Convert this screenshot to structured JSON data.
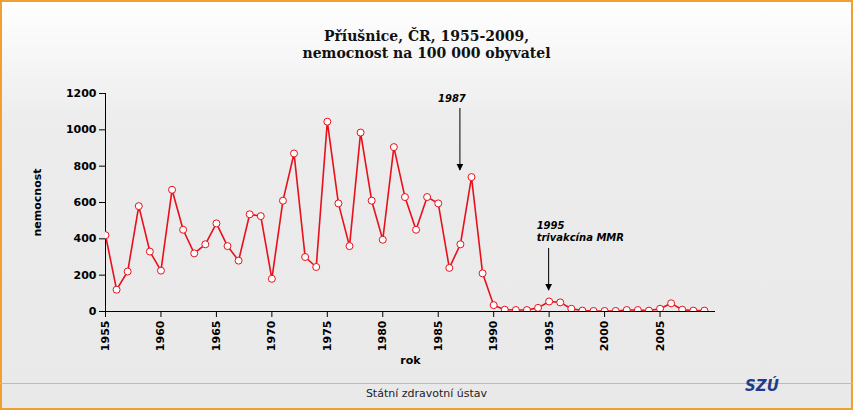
{
  "chart_data": {
    "type": "line",
    "title": "Příušnice, ČR, 1955-2009,",
    "subtitle": "nemocnost na 100 000 obyvatel",
    "x_label": "rok",
    "y_label": "nemocnost",
    "x": [
      1955,
      1956,
      1957,
      1958,
      1959,
      1960,
      1961,
      1962,
      1963,
      1964,
      1965,
      1966,
      1967,
      1968,
      1969,
      1970,
      1971,
      1972,
      1973,
      1974,
      1975,
      1976,
      1977,
      1978,
      1979,
      1980,
      1981,
      1982,
      1983,
      1984,
      1985,
      1986,
      1987,
      1988,
      1989,
      1990,
      1991,
      1992,
      1993,
      1994,
      1995,
      1996,
      1997,
      1998,
      1999,
      2000,
      2001,
      2002,
      2003,
      2004,
      2005,
      2006,
      2007,
      2008,
      2009
    ],
    "values": [
      420,
      120,
      220,
      580,
      330,
      225,
      670,
      450,
      320,
      370,
      485,
      360,
      280,
      535,
      525,
      180,
      610,
      870,
      300,
      245,
      1045,
      595,
      360,
      985,
      610,
      395,
      905,
      630,
      450,
      630,
      595,
      240,
      370,
      740,
      210,
      35,
      10,
      8,
      8,
      20,
      55,
      50,
      15,
      5,
      3,
      3,
      3,
      8,
      8,
      5,
      15,
      45,
      10,
      5,
      5
    ],
    "color": "#e8101a",
    "marker": "circle",
    "xlim": [
      1955,
      2010
    ],
    "xticks": [
      1955,
      1960,
      1965,
      1970,
      1975,
      1980,
      1985,
      1990,
      1995,
      2000,
      2005
    ],
    "ylim": [
      0,
      1200
    ],
    "yticks": [
      0,
      200,
      400,
      600,
      800,
      1000,
      1200
    ],
    "grid": false,
    "annotations": [
      {
        "x": 1987,
        "text": [
          "1987"
        ]
      },
      {
        "x": 1995,
        "text": [
          "1995",
          "trivakcína MMR"
        ]
      }
    ],
    "source": "Státní zdravotní ústav",
    "logo": "SZÚ"
  }
}
